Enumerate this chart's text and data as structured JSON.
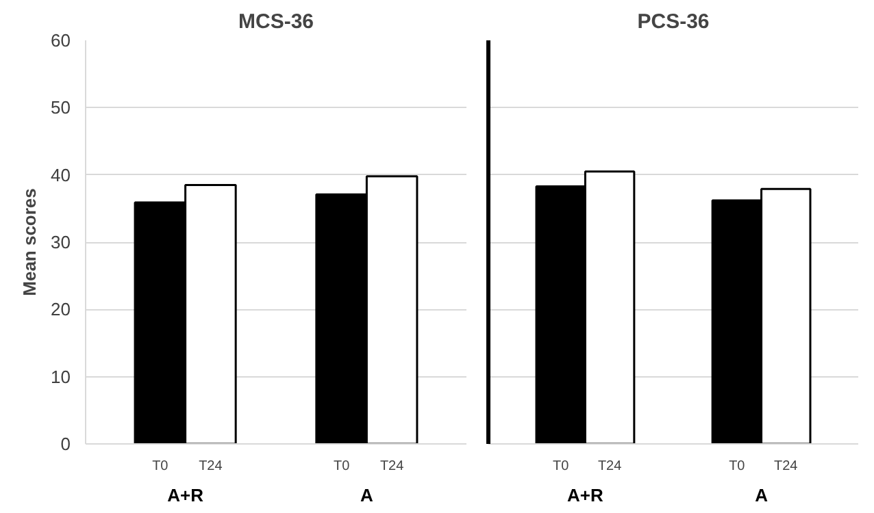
{
  "chart_data": [
    {
      "type": "bar",
      "title": "MCS-36",
      "ylabel": "Mean scores",
      "categories": [
        "A+R",
        "A"
      ],
      "series": [
        {
          "name": "T0",
          "color": "#000000",
          "values": [
            35.9,
            37.1
          ]
        },
        {
          "name": "T24",
          "color": "#ffffff",
          "values": [
            38.5,
            39.8
          ]
        }
      ],
      "ylim": [
        0,
        60
      ],
      "yticks": [
        0,
        10,
        20,
        30,
        40,
        50,
        60
      ],
      "grid": "y"
    },
    {
      "type": "bar",
      "title": "PCS-36",
      "categories": [
        "A+R",
        "A"
      ],
      "series": [
        {
          "name": "T0",
          "color": "#000000",
          "values": [
            38.3,
            36.2
          ]
        },
        {
          "name": "T24",
          "color": "#ffffff",
          "values": [
            40.5,
            37.9
          ]
        }
      ],
      "ylim": [
        0,
        60
      ],
      "yticks": [
        0,
        10,
        20,
        30,
        40,
        50,
        60
      ],
      "grid": "y",
      "tick_labels": "x"
    }
  ]
}
